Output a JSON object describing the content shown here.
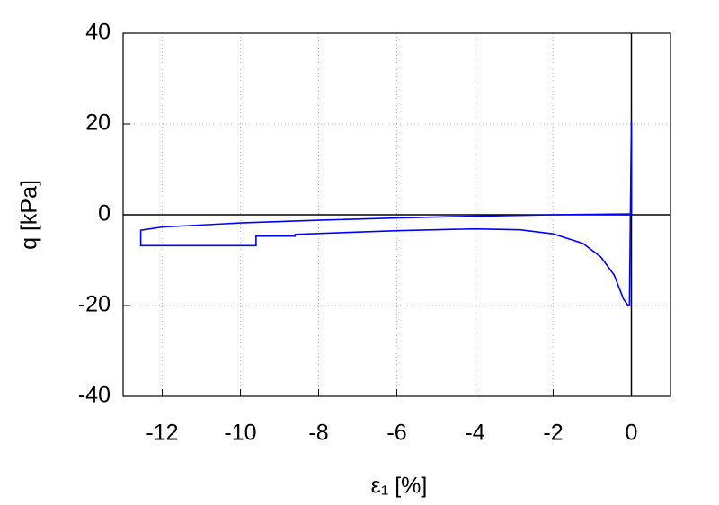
{
  "chart_data": {
    "type": "line",
    "x_label": "ε₁ [%]",
    "y_label": "q [kPa]",
    "xlim": [
      -13,
      1
    ],
    "ylim": [
      -40,
      40
    ],
    "xticks": [
      -12,
      -10,
      -8,
      -6,
      -4,
      -2,
      0
    ],
    "yticks": [
      -40,
      -20,
      0,
      20,
      40
    ],
    "grid": true,
    "zero_lines": true,
    "series": [
      {
        "color": "#0000ff",
        "x": [
          0,
          0,
          -0.05,
          -0.1,
          -0.2,
          -0.44,
          -0.78,
          -1.24,
          -2,
          -2.85,
          -4,
          -6,
          -8.6,
          -8.6,
          -9.6,
          -9.6,
          -12.55,
          -12.55,
          -12,
          -10,
          -8,
          -6,
          -4,
          -2,
          0
        ],
        "values": [
          0,
          20.5,
          -20,
          -19.8,
          -18.6,
          -13.3,
          -9.3,
          -6.3,
          -4.2,
          -3.3,
          -3.1,
          -3.5,
          -4.3,
          -4.7,
          -4.7,
          -6.8,
          -6.8,
          -3.4,
          -2.7,
          -1.8,
          -1.2,
          -0.7,
          -0.3,
          0,
          0.2
        ]
      }
    ]
  }
}
